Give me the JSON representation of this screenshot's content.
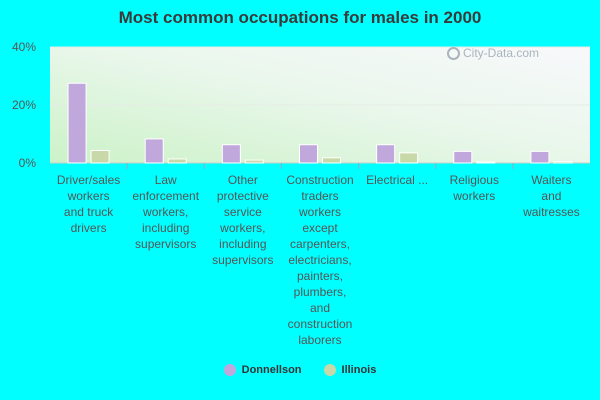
{
  "chart_data": {
    "type": "bar",
    "title": "Most common occupations for males in 2000",
    "categories": [
      [
        "Driver/sales",
        "workers",
        "and truck",
        "drivers"
      ],
      [
        "Law",
        "enforcement",
        "workers,",
        "including",
        "supervisors"
      ],
      [
        "Other",
        "protective",
        "service",
        "workers,",
        "including",
        "supervisors"
      ],
      [
        "Construction",
        "traders",
        "workers",
        "except",
        "carpenters,",
        "electricians,",
        "painters,",
        "plumbers,",
        "and",
        "construction",
        "laborers"
      ],
      [
        "Electrical ..."
      ],
      [
        "Religious",
        "workers"
      ],
      [
        "Waiters",
        "and",
        "waitresses"
      ]
    ],
    "series": [
      {
        "name": "Donnellson",
        "color": "#c0a8dc",
        "values": [
          27.5,
          8.3,
          6.3,
          6.3,
          6.3,
          4.0,
          4.0
        ]
      },
      {
        "name": "Illinois",
        "color": "#c8d8a8",
        "values": [
          4.3,
          1.4,
          1.0,
          1.8,
          3.5,
          0.4,
          0.5
        ]
      }
    ],
    "yticks": [
      "0%",
      "20%",
      "40%"
    ],
    "ylim": [
      0,
      40
    ],
    "grid": true,
    "legend_position": "bottom"
  },
  "watermark": "City-Data.com"
}
